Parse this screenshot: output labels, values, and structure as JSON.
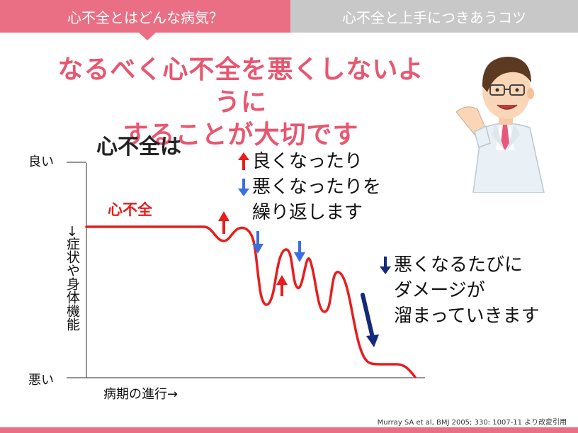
{
  "tabs": [
    {
      "label": "心不全とはどんな病気？",
      "active": true
    },
    {
      "label": "心不全と上手につきあうコツ",
      "active": false
    }
  ],
  "headline": {
    "line1": "なるべく心不全を悪くしないように",
    "line2": "することが大切です"
  },
  "section_title": "心不全は",
  "axis": {
    "good": "良い",
    "bad": "悪い",
    "y_label": "→症状や身体機能",
    "x_label": "病期の進行→"
  },
  "series_label": "心不全",
  "notes": {
    "fluctuation": [
      {
        "icon": "up-arrow-icon",
        "text": "良くなったり"
      },
      {
        "icon": "down-arrow-icon",
        "text": "悪くなったりを"
      },
      {
        "icon": "",
        "text": "繰り返します"
      }
    ],
    "damage": [
      {
        "icon": "down-arrow-icon",
        "text": "悪くなるたびに"
      },
      {
        "icon": "",
        "text": "ダメージが"
      },
      {
        "icon": "",
        "text": "溜まっていきます"
      }
    ]
  },
  "citation": "Murray SA et al, BMJ 2005; 330: 1007-11 より改変引用",
  "colors": {
    "accent": "#ea6f84",
    "headline": "#e85670",
    "curve": "#e81d1d",
    "up_arrow": "#e81d1d",
    "down_arrow": "#3b6fe0",
    "damage_arrow": "#142a7a",
    "tab_inactive": "#c8c8c8"
  }
}
